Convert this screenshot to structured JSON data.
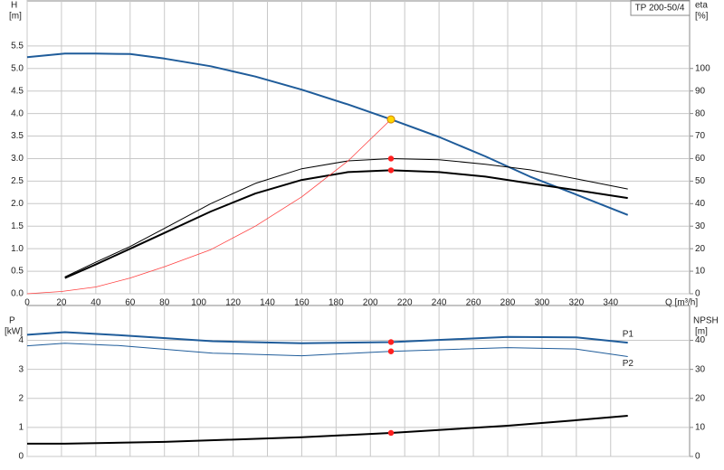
{
  "chart_data": [
    {
      "type": "line",
      "title": "TP 200-50/4",
      "y_label": "H",
      "y_unit": "[m]",
      "y2_label": "eta",
      "y2_unit": "[%]",
      "x_label": "Q [m³/h]",
      "xlim": [
        0,
        386
      ],
      "xticks": [
        0,
        20,
        40,
        60,
        80,
        100,
        120,
        140,
        160,
        180,
        200,
        220,
        240,
        260,
        280,
        300,
        320,
        340
      ],
      "ylim": [
        0,
        6.5
      ],
      "yticks": [
        {
          "value": 0,
          "label": "0.0"
        },
        0.5,
        {
          "value": 1,
          "label": "1.0"
        },
        1.5,
        {
          "value": 2,
          "label": "2.0"
        },
        2.5,
        {
          "value": 3,
          "label": "3.0"
        },
        3.5,
        {
          "value": 4,
          "label": "4.0"
        },
        4.5,
        {
          "value": 5,
          "label": "5.0"
        },
        5.5
      ],
      "y2lim": [
        0,
        130
      ],
      "y2ticks": [
        0,
        10,
        20,
        30,
        40,
        50,
        60,
        70,
        80,
        90,
        100
      ],
      "grid": true,
      "series": [
        {
          "color": "#1f5c9a",
          "width": 2,
          "axis": "y",
          "x": [
            0,
            22,
            40,
            60,
            80,
            107,
            133,
            160,
            187,
            212,
            240,
            267,
            293,
            320,
            350
          ],
          "values": [
            5.25,
            5.33,
            5.33,
            5.32,
            5.22,
            5.05,
            4.82,
            4.53,
            4.2,
            3.87,
            3.48,
            3.05,
            2.6,
            2.2,
            1.75
          ]
        },
        {
          "color": "#000000",
          "width": 1,
          "axis": "y2",
          "x": [
            22,
            40,
            60,
            80,
            107,
            133,
            160,
            187,
            212,
            240,
            267,
            293,
            320,
            350
          ],
          "values": [
            7.5,
            14,
            21,
            29,
            40,
            49,
            55.5,
            59,
            60,
            59.5,
            57.5,
            55,
            51,
            46.5
          ]
        },
        {
          "color": "#000000",
          "width": 2,
          "axis": "y2",
          "x": [
            22,
            40,
            60,
            80,
            107,
            133,
            160,
            187,
            212,
            240,
            267,
            293,
            320,
            350
          ],
          "values": [
            7,
            13,
            20,
            27,
            36.5,
            44.5,
            50.5,
            54,
            54.8,
            54,
            52,
            49,
            46,
            42.5
          ]
        },
        {
          "color": "#ff4040",
          "width": 0.8,
          "axis": "y",
          "x": [
            0,
            20,
            40,
            60,
            80,
            107,
            133,
            160,
            187,
            212
          ],
          "values": [
            0,
            0.05,
            0.15,
            0.35,
            0.6,
            0.98,
            1.5,
            2.15,
            2.95,
            3.87
          ]
        }
      ],
      "points": [
        {
          "x": 212,
          "y": 3.87,
          "axis": "y",
          "color": "#ffd700"
        },
        {
          "x": 212,
          "y": 60,
          "axis": "y2",
          "color": "#ff2020"
        },
        {
          "x": 212,
          "y": 54.8,
          "axis": "y2",
          "color": "#ff2020"
        }
      ]
    },
    {
      "type": "line",
      "y_label": "P",
      "y_unit": "[kW]",
      "y2_label": "NPSH",
      "y2_unit": "[m]",
      "xlim": [
        0,
        386
      ],
      "xticks": [
        0,
        20,
        40,
        60,
        80,
        100,
        120,
        140,
        160,
        180,
        200,
        220,
        240,
        260,
        280,
        300,
        320,
        340
      ],
      "ylim": [
        0,
        5.2
      ],
      "yticks": [
        0,
        1,
        2,
        3,
        4
      ],
      "y2lim": [
        0,
        52
      ],
      "y2ticks": [
        0,
        10,
        20,
        30,
        40
      ],
      "grid": true,
      "series": [
        {
          "name": "P1",
          "color": "#1f5c9a",
          "width": 2,
          "axis": "y",
          "x": [
            0,
            22,
            53,
            108,
            160,
            212,
            280,
            320,
            350
          ],
          "values": [
            4.19,
            4.28,
            4.18,
            3.97,
            3.9,
            3.94,
            4.12,
            4.1,
            3.92
          ]
        },
        {
          "name": "P2",
          "color": "#1f5c9a",
          "width": 1,
          "axis": "y",
          "x": [
            0,
            22,
            53,
            108,
            160,
            212,
            280,
            320,
            350
          ],
          "values": [
            3.81,
            3.9,
            3.82,
            3.56,
            3.47,
            3.62,
            3.75,
            3.7,
            3.44
          ]
        },
        {
          "color": "#000000",
          "width": 2,
          "axis": "y2",
          "x": [
            0,
            22,
            80,
            160,
            212,
            280,
            320,
            350
          ],
          "values": [
            4.4,
            4.4,
            5,
            6.6,
            8.1,
            10.6,
            12.5,
            14
          ]
        }
      ],
      "points": [
        {
          "x": 212,
          "y": 3.94,
          "axis": "y",
          "color": "#ff2020"
        },
        {
          "x": 212,
          "y": 3.62,
          "axis": "y",
          "color": "#ff2020"
        },
        {
          "x": 212,
          "y": 8.1,
          "axis": "y2",
          "color": "#ff2020"
        }
      ]
    }
  ]
}
